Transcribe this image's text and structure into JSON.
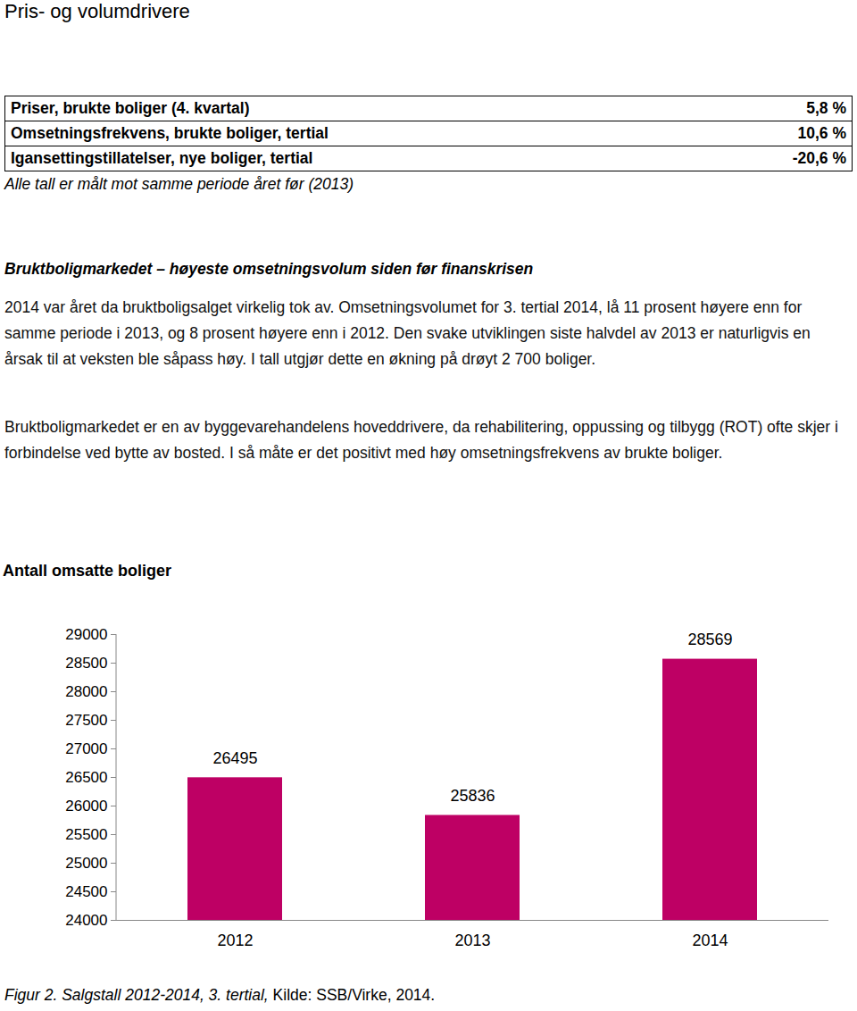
{
  "header": {
    "title": "Pris- og volumdrivere"
  },
  "table": {
    "rows": [
      [
        "Priser, brukte boliger (4. kvartal)",
        "5,8 %"
      ],
      [
        "Omsetningsfrekvens, brukte boliger, tertial",
        "10,6 %"
      ],
      [
        "Igansettingstillatelser, nye boliger, tertial",
        "-20,6 %"
      ]
    ],
    "note": "Alle tall er målt mot samme periode året før (2013)"
  },
  "sections": [
    {
      "heading": "Bruktboligmarkedet – høyeste omsetningsvolum siden før finanskrisen",
      "paragraphs": [
        "2014 var året da bruktboligsalget virkelig tok av. Omsetningsvolumet for 3. tertial 2014, lå 11 prosent høyere enn for samme periode i 2013, og 8 prosent høyere enn i 2012. Den svake utviklingen siste halvdel av 2013 er naturligvis en årsak til at veksten ble såpass høy. I tall utgjør dette en økning på drøyt 2 700 boliger.",
        "Bruktboligmarkedet er en av byggevarehandelens hoveddrivere, da rehabilitering, oppussing og tilbygg (ROT) ofte skjer i forbindelse ved bytte av bosted. I så måte er det positivt med høy omsetningsfrekvens av brukte boliger."
      ]
    }
  ],
  "chart_data": {
    "type": "bar",
    "y_label": "Antall omsatte boliger",
    "categories": [
      "2012",
      "2013",
      "2014"
    ],
    "values": [
      26495,
      25836,
      28569
    ],
    "color": "#be0064",
    "ylim": [
      24000,
      29000
    ],
    "yticks": [
      24000,
      24500,
      25000,
      25500,
      26000,
      26500,
      27000,
      27500,
      28000,
      28500,
      29000
    ],
    "data_labels": true,
    "grid": false
  },
  "caption": {
    "text": "Figur 2. Salgstall 2012-2014, 3. tertial,",
    "source": "Kilde: SSB/Virke, 2014."
  }
}
